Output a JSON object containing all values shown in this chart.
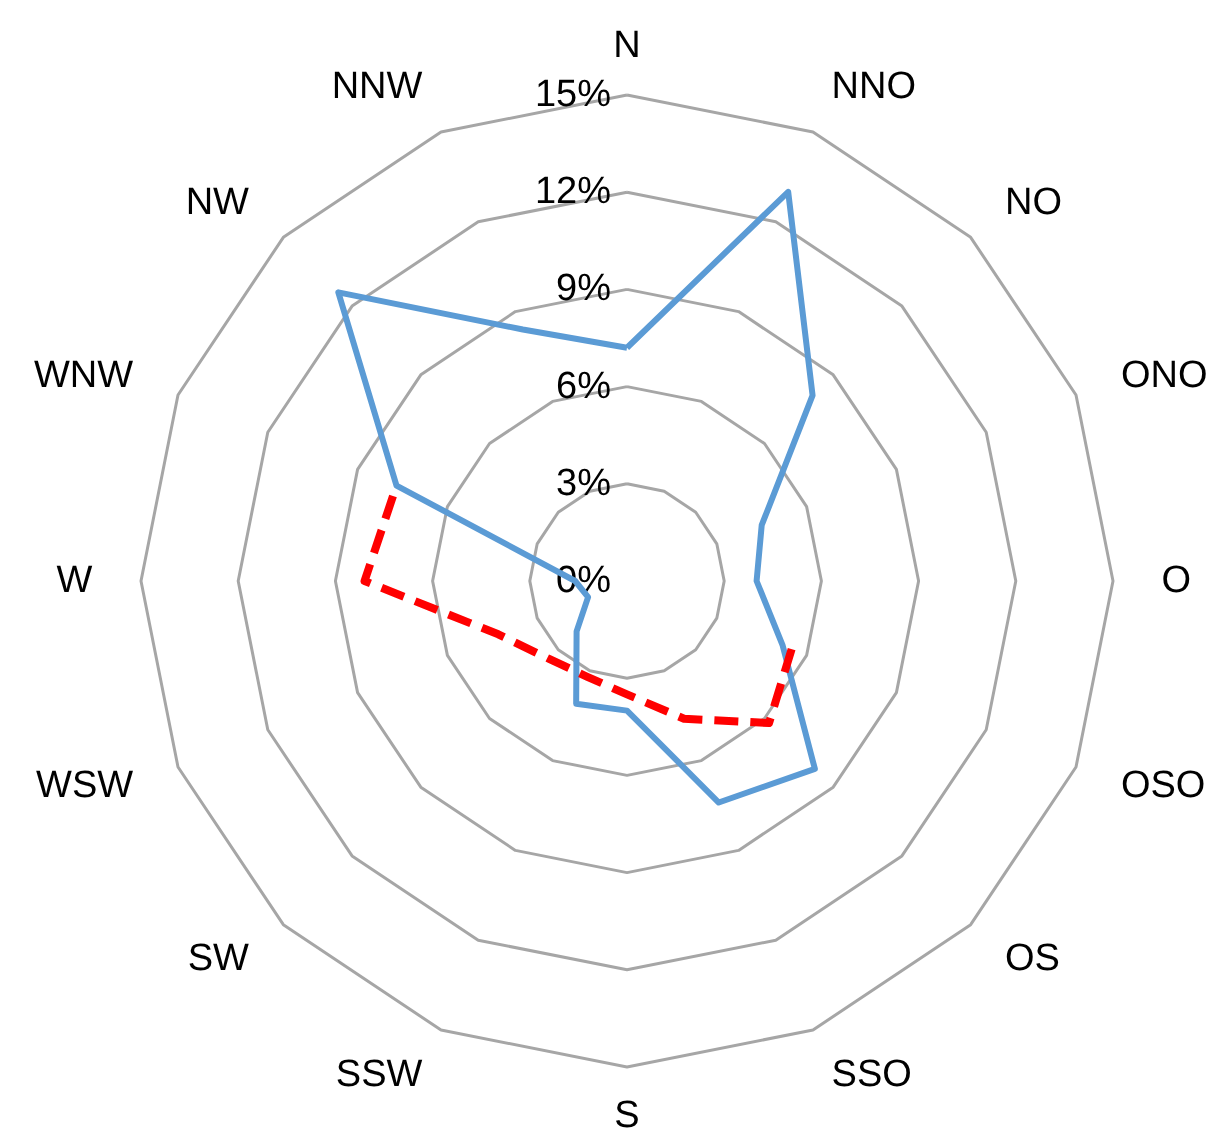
{
  "chart_data": {
    "type": "radar",
    "categories": [
      "N",
      "NNO",
      "NO",
      "ONO",
      "O",
      "OSO",
      "OS",
      "SSO",
      "S",
      "SSW",
      "SW",
      "WSW",
      "W",
      "WNW",
      "NW",
      "NNW"
    ],
    "ylim": [
      0,
      15
    ],
    "yticks": [
      {
        "value": 0,
        "label": "0%"
      },
      {
        "value": 3,
        "label": "3%"
      },
      {
        "value": 6,
        "label": "6%"
      },
      {
        "value": 9,
        "label": "9%"
      },
      {
        "value": 12,
        "label": "12%"
      },
      {
        "value": 15,
        "label": "15%"
      }
    ],
    "grid": true,
    "marker": "none",
    "series": [
      {
        "color": "#5b9bd5",
        "line_style": "solid",
        "values": [
          7.2,
          13.0,
          8.1,
          4.5,
          4.0,
          5.2,
          8.2,
          7.4,
          4.0,
          4.1,
          2.2,
          1.3,
          1.6,
          7.7,
          12.6,
          8.4
        ]
      },
      {
        "color": "#ff0000",
        "line_style": "dashed",
        "values": [
          null,
          null,
          null,
          null,
          null,
          5.5,
          6.2,
          4.6,
          3.5,
          3.2,
          3.4,
          4.3,
          8.1,
          7.7,
          null,
          null
        ]
      }
    ]
  }
}
